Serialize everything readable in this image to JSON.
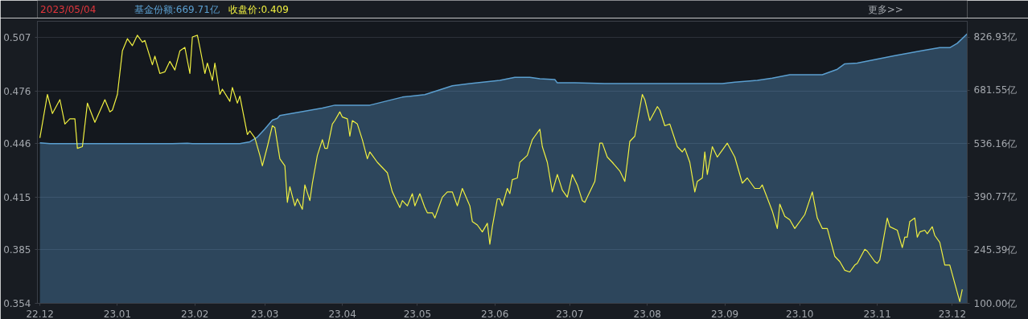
{
  "chart_data": {
    "type": "line",
    "annotations": [
      "2023/05/04",
      "基金份额:669.71亿",
      "收盘价:0.409",
      "更多>>"
    ],
    "xlim": [
      "2022-11-30",
      "2023-12-07"
    ],
    "xticks": [
      {
        "value": "2022-12-01",
        "label": "22.12"
      },
      {
        "value": "2023-01-01",
        "label": "23.01"
      },
      {
        "value": "2023-02-01",
        "label": "23.02"
      },
      {
        "value": "2023-03-01",
        "label": "23.03"
      },
      {
        "value": "2023-04-01",
        "label": "23.04"
      },
      {
        "value": "2023-05-01",
        "label": "23.05"
      },
      {
        "value": "2023-06-01",
        "label": "23.06"
      },
      {
        "value": "2023-07-01",
        "label": "23.07"
      },
      {
        "value": "2023-08-01",
        "label": "23.08"
      },
      {
        "value": "2023-09-01",
        "label": "23.09"
      },
      {
        "value": "2023-10-01",
        "label": "23.10"
      },
      {
        "value": "2023-11-01",
        "label": "23.11"
      },
      {
        "value": "2023-12-01",
        "label": "23.12"
      }
    ],
    "ylim": [
      0.354,
      0.516
    ],
    "yticks": [
      0.354,
      0.385,
      0.415,
      0.446,
      0.476,
      0.507
    ],
    "y2lim": [
      100,
      870
    ],
    "y2ticks": [
      {
        "value": 100,
        "label": "100.00亿"
      },
      {
        "value": 245.39,
        "label": "245.39亿"
      },
      {
        "value": 390.77,
        "label": "390.77亿"
      },
      {
        "value": 536.16,
        "label": "536.16亿"
      },
      {
        "value": 681.55,
        "label": "681.55亿"
      },
      {
        "value": 826.93,
        "label": "826.93亿"
      }
    ],
    "grid": "y",
    "marker": "none",
    "line_style": "solid",
    "series": [
      {
        "type": "area",
        "axis": "y2",
        "color": "#5b9fd0",
        "x": [
          "2022-12-01",
          "2022-12-05",
          "2023-01-23",
          "2023-01-29",
          "2023-01-31",
          "2023-02-19",
          "2023-02-23",
          "2023-02-26",
          "2023-03-01",
          "2023-03-04",
          "2023-03-06",
          "2023-03-07",
          "2023-03-13",
          "2023-03-24",
          "2023-03-29",
          "2023-04-12",
          "2023-04-25",
          "2023-05-04",
          "2023-05-15",
          "2023-05-22",
          "2023-06-03",
          "2023-06-09",
          "2023-06-15",
          "2023-06-19",
          "2023-06-25",
          "2023-06-26",
          "2023-07-03",
          "2023-07-15",
          "2023-08-02",
          "2023-08-31",
          "2023-09-05",
          "2023-09-14",
          "2023-09-20",
          "2023-09-27",
          "2023-10-10",
          "2023-10-16",
          "2023-10-19",
          "2023-10-24",
          "2023-11-08",
          "2023-11-19",
          "2023-11-26",
          "2023-11-30",
          "2023-12-03",
          "2023-12-07"
        ],
        "values": [
          538,
          536,
          536,
          537,
          536,
          536,
          541,
          554,
          576,
          600,
          605,
          613,
          620,
          633,
          641,
          641,
          663,
          669.71,
          694,
          700,
          709,
          717,
          717,
          713,
          711,
          702,
          702,
          700,
          700,
          700,
          704,
          709,
          715,
          724,
          724,
          739,
          754,
          756,
          776,
          790,
          798,
          798,
          810,
          836
        ]
      },
      {
        "color": "#f0f040",
        "x": [
          "2022-12-01",
          "2022-12-04",
          "2022-12-06",
          "2022-12-09",
          "2022-12-11",
          "2022-12-13",
          "2022-12-15",
          "2022-12-16",
          "2022-12-18",
          "2022-12-20",
          "2022-12-23",
          "2022-12-27",
          "2022-12-29",
          "2022-12-30",
          "2023-01-01",
          "2023-01-03",
          "2023-01-05",
          "2023-01-07",
          "2023-01-09",
          "2023-01-11",
          "2023-01-12",
          "2023-01-15",
          "2023-01-16",
          "2023-01-18",
          "2023-01-20",
          "2023-01-22",
          "2023-01-24",
          "2023-01-26",
          "2023-01-28",
          "2023-01-30",
          "2023-01-31",
          "2023-02-02",
          "2023-02-03",
          "2023-02-05",
          "2023-02-06",
          "2023-02-08",
          "2023-02-09",
          "2023-02-11",
          "2023-02-12",
          "2023-02-15",
          "2023-02-16",
          "2023-02-18",
          "2023-02-19",
          "2023-02-22",
          "2023-02-23",
          "2023-02-25",
          "2023-02-27",
          "2023-02-28",
          "2023-03-02",
          "2023-03-04",
          "2023-03-05",
          "2023-03-07",
          "2023-03-09",
          "2023-03-10",
          "2023-03-11",
          "2023-03-13",
          "2023-03-14",
          "2023-03-16",
          "2023-03-17",
          "2023-03-19",
          "2023-03-20",
          "2023-03-22",
          "2023-03-24",
          "2023-03-25",
          "2023-03-26",
          "2023-03-28",
          "2023-03-29",
          "2023-03-31",
          "2023-04-01",
          "2023-04-03",
          "2023-04-04",
          "2023-04-05",
          "2023-04-07",
          "2023-04-09",
          "2023-04-11",
          "2023-04-12",
          "2023-04-13",
          "2023-04-15",
          "2023-04-17",
          "2023-04-19",
          "2023-04-21",
          "2023-04-24",
          "2023-04-25",
          "2023-04-27",
          "2023-04-29",
          "2023-04-30",
          "2023-05-02",
          "2023-05-04",
          "2023-05-05",
          "2023-05-07",
          "2023-05-08",
          "2023-05-11",
          "2023-05-13",
          "2023-05-15",
          "2023-05-17",
          "2023-05-19",
          "2023-05-22",
          "2023-05-23",
          "2023-05-25",
          "2023-05-27",
          "2023-05-29",
          "2023-05-30",
          "2023-05-31",
          "2023-06-02",
          "2023-06-03",
          "2023-06-04",
          "2023-06-06",
          "2023-06-07",
          "2023-06-08",
          "2023-06-10",
          "2023-06-11",
          "2023-06-14",
          "2023-06-16",
          "2023-06-17",
          "2023-06-19",
          "2023-06-20",
          "2023-06-22",
          "2023-06-24",
          "2023-06-26",
          "2023-06-28",
          "2023-06-30",
          "2023-07-02",
          "2023-07-04",
          "2023-07-06",
          "2023-07-07",
          "2023-07-11",
          "2023-07-12",
          "2023-07-13",
          "2023-07-14",
          "2023-07-16",
          "2023-07-18",
          "2023-07-21",
          "2023-07-23",
          "2023-07-24",
          "2023-07-25",
          "2023-07-27",
          "2023-07-30",
          "2023-07-31",
          "2023-08-02",
          "2023-08-05",
          "2023-08-06",
          "2023-08-08",
          "2023-08-10",
          "2023-08-13",
          "2023-08-15",
          "2023-08-16",
          "2023-08-18",
          "2023-08-20",
          "2023-08-21",
          "2023-08-23",
          "2023-08-24",
          "2023-08-25",
          "2023-08-27",
          "2023-08-29",
          "2023-08-30",
          "2023-09-02",
          "2023-09-05",
          "2023-09-08",
          "2023-09-10",
          "2023-09-13",
          "2023-09-15",
          "2023-09-16",
          "2023-09-20",
          "2023-09-22",
          "2023-09-23",
          "2023-09-25",
          "2023-09-27",
          "2023-09-29",
          "2023-10-03",
          "2023-10-06",
          "2023-10-08",
          "2023-10-10",
          "2023-10-12",
          "2023-10-15",
          "2023-10-17",
          "2023-10-19",
          "2023-10-21",
          "2023-10-23",
          "2023-10-24",
          "2023-10-27",
          "2023-10-28",
          "2023-10-31",
          "2023-11-01",
          "2023-11-02",
          "2023-11-05",
          "2023-11-06",
          "2023-11-09",
          "2023-11-11",
          "2023-11-12",
          "2023-11-13",
          "2023-11-14",
          "2023-11-16",
          "2023-11-17",
          "2023-11-18",
          "2023-11-20",
          "2023-11-21",
          "2023-11-23",
          "2023-11-24",
          "2023-11-26",
          "2023-11-28",
          "2023-11-30",
          "2023-12-04",
          "2023-12-05"
        ],
        "values": [
          0.449,
          0.474,
          0.463,
          0.471,
          0.457,
          0.46,
          0.46,
          0.443,
          0.444,
          0.469,
          0.458,
          0.471,
          0.464,
          0.465,
          0.474,
          0.499,
          0.506,
          0.502,
          0.508,
          0.504,
          0.505,
          0.491,
          0.496,
          0.486,
          0.487,
          0.493,
          0.488,
          0.499,
          0.501,
          0.486,
          0.507,
          0.508,
          0.501,
          0.486,
          0.492,
          0.482,
          0.492,
          0.474,
          0.477,
          0.47,
          0.478,
          0.469,
          0.473,
          0.451,
          0.453,
          0.449,
          0.439,
          0.433,
          0.444,
          0.456,
          0.455,
          0.437,
          0.433,
          0.412,
          0.421,
          0.41,
          0.414,
          0.408,
          0.422,
          0.413,
          0.423,
          0.439,
          0.448,
          0.443,
          0.443,
          0.457,
          0.459,
          0.464,
          0.461,
          0.46,
          0.45,
          0.459,
          0.457,
          0.448,
          0.437,
          0.441,
          0.439,
          0.435,
          0.432,
          0.429,
          0.418,
          0.409,
          0.413,
          0.41,
          0.417,
          0.41,
          0.417,
          0.409,
          0.406,
          0.406,
          0.403,
          0.415,
          0.418,
          0.418,
          0.41,
          0.42,
          0.41,
          0.401,
          0.399,
          0.395,
          0.4,
          0.388,
          0.398,
          0.414,
          0.414,
          0.41,
          0.42,
          0.417,
          0.425,
          0.426,
          0.435,
          0.439,
          0.448,
          0.45,
          0.454,
          0.444,
          0.435,
          0.418,
          0.428,
          0.419,
          0.415,
          0.428,
          0.422,
          0.413,
          0.412,
          0.424,
          0.435,
          0.446,
          0.446,
          0.438,
          0.435,
          0.43,
          0.424,
          0.435,
          0.447,
          0.45,
          0.474,
          0.471,
          0.459,
          0.467,
          0.465,
          0.456,
          0.457,
          0.444,
          0.441,
          0.443,
          0.435,
          0.418,
          0.424,
          0.426,
          0.441,
          0.428,
          0.444,
          0.438,
          0.44,
          0.446,
          0.438,
          0.423,
          0.426,
          0.42,
          0.42,
          0.422,
          0.407,
          0.397,
          0.411,
          0.404,
          0.402,
          0.397,
          0.405,
          0.418,
          0.403,
          0.397,
          0.397,
          0.381,
          0.378,
          0.373,
          0.372,
          0.376,
          0.377,
          0.385,
          0.384,
          0.378,
          0.377,
          0.379,
          0.403,
          0.398,
          0.396,
          0.386,
          0.392,
          0.392,
          0.401,
          0.403,
          0.392,
          0.395,
          0.396,
          0.394,
          0.398,
          0.393,
          0.389,
          0.376,
          0.376,
          0.355,
          0.362
        ]
      }
    ]
  }
}
